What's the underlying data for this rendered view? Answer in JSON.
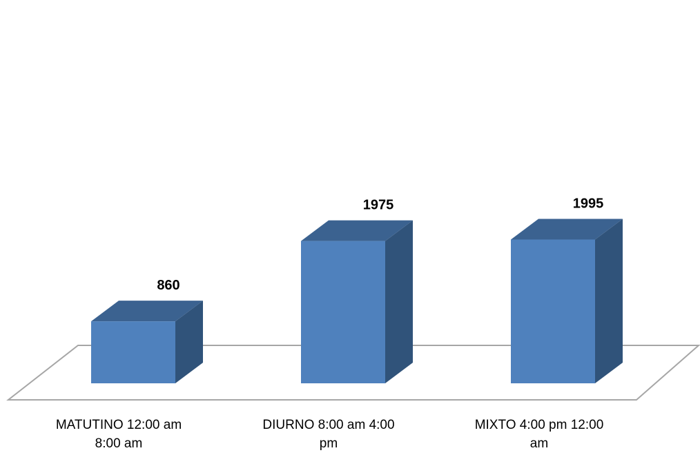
{
  "chart_data": {
    "type": "bar",
    "style": "3d-column",
    "categories": [
      [
        "MATUTINO 12:00 am",
        "8:00 am"
      ],
      [
        "DIURNO 8:00 am 4:00",
        "pm"
      ],
      [
        "MIXTO 4:00 pm 12:00",
        "am"
      ]
    ],
    "values": [
      860,
      1975,
      1995
    ],
    "data_labels": [
      "860",
      "1975",
      "1995"
    ],
    "title": "",
    "xlabel": "",
    "ylabel": "",
    "ylim": [
      0,
      2000
    ],
    "grid": false,
    "legend": "none",
    "colors": {
      "front": "#4F81BD",
      "top": "#3B6290",
      "side": "#30537A",
      "floor_stroke": "#A6A6A6"
    }
  }
}
